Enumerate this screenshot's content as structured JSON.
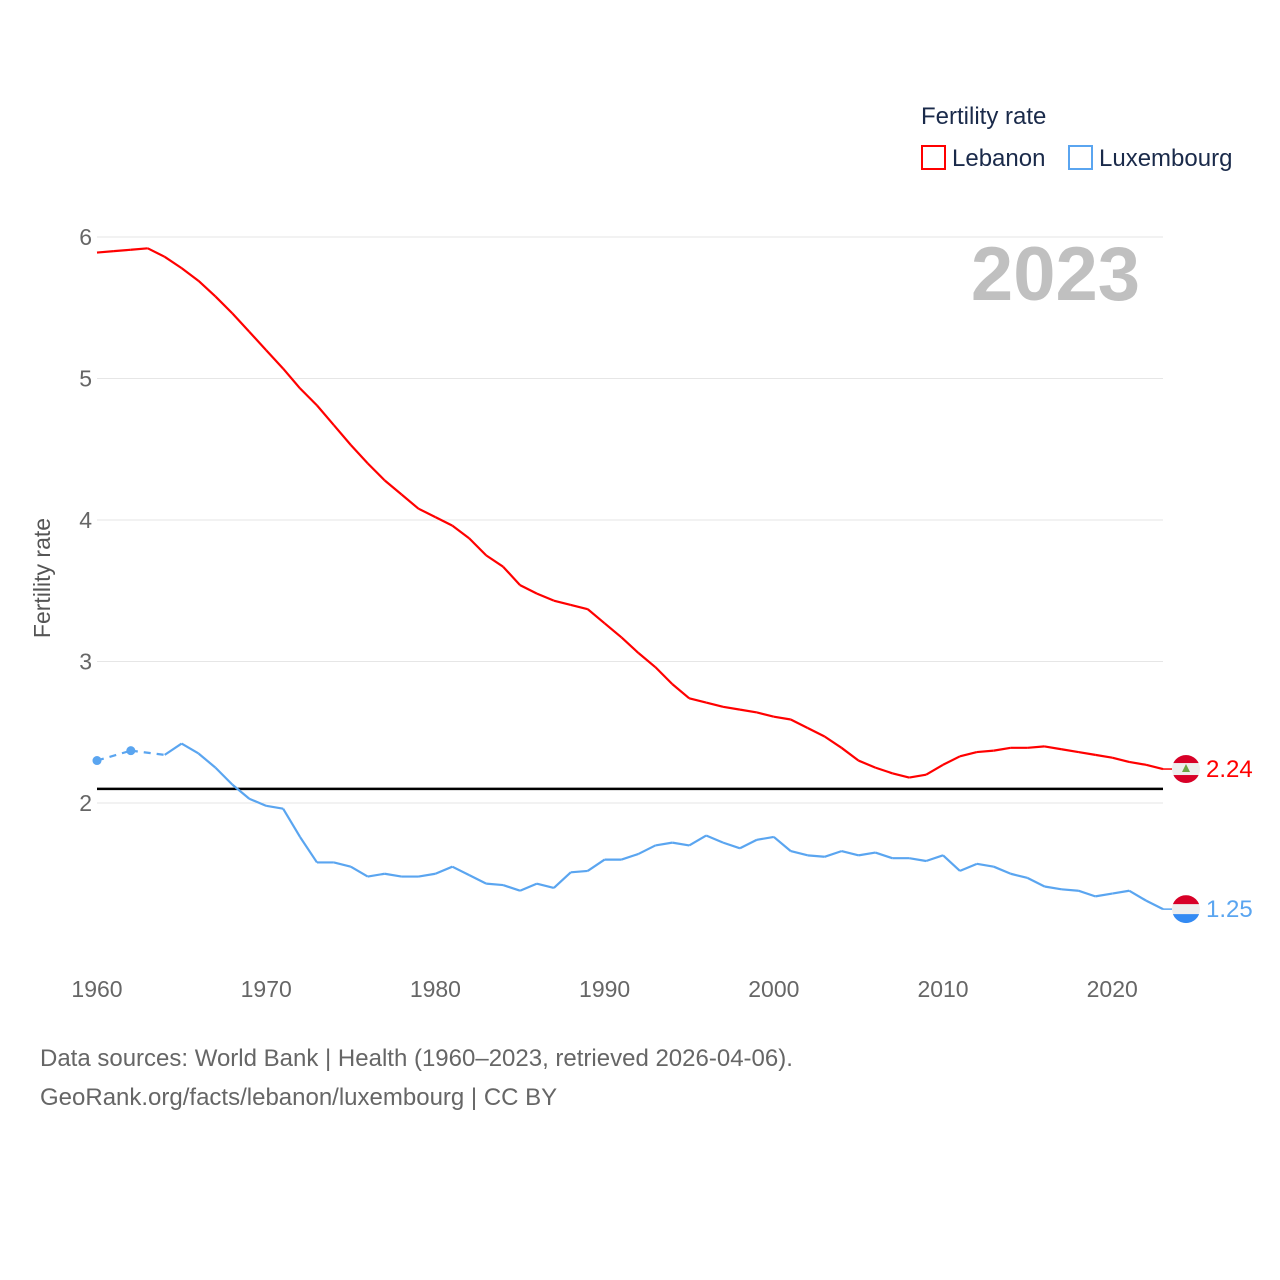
{
  "chart_data": {
    "type": "line",
    "title": "",
    "ylabel": "Fertility rate",
    "xlabel": "",
    "xlim": [
      1960,
      2023
    ],
    "ylim": [
      1.0,
      6.0
    ],
    "x_ticks": [
      "1960",
      "1970",
      "1980",
      "1990",
      "2000",
      "2010",
      "2020"
    ],
    "y_ticks": [
      "2",
      "3",
      "4",
      "5",
      "6"
    ],
    "grid": true,
    "year_label": "2023",
    "legend": {
      "title": "Fertility rate",
      "position": "top-right"
    },
    "reference_line": {
      "value": 2.1,
      "color": "#000000"
    },
    "x": [
      1960,
      1961,
      1962,
      1963,
      1964,
      1965,
      1966,
      1967,
      1968,
      1969,
      1970,
      1971,
      1972,
      1973,
      1974,
      1975,
      1976,
      1977,
      1978,
      1979,
      1980,
      1981,
      1982,
      1983,
      1984,
      1985,
      1986,
      1987,
      1988,
      1989,
      1990,
      1991,
      1992,
      1993,
      1994,
      1995,
      1996,
      1997,
      1998,
      1999,
      2000,
      2001,
      2002,
      2003,
      2004,
      2005,
      2006,
      2007,
      2008,
      2009,
      2010,
      2011,
      2012,
      2013,
      2014,
      2015,
      2016,
      2017,
      2018,
      2019,
      2020,
      2021,
      2022,
      2023
    ],
    "series": [
      {
        "name": "Lebanon",
        "color": "#ff0000",
        "end_label": "2.24",
        "values": [
          5.89,
          5.9,
          5.91,
          5.92,
          5.86,
          5.78,
          5.69,
          5.58,
          5.46,
          5.33,
          5.2,
          5.07,
          4.93,
          4.81,
          4.67,
          4.53,
          4.4,
          4.28,
          4.18,
          4.08,
          4.02,
          3.96,
          3.87,
          3.75,
          3.67,
          3.54,
          3.48,
          3.43,
          3.4,
          3.37,
          3.27,
          3.17,
          3.06,
          2.96,
          2.84,
          2.74,
          2.71,
          2.68,
          2.66,
          2.64,
          2.61,
          2.59,
          2.53,
          2.47,
          2.39,
          2.3,
          2.25,
          2.21,
          2.18,
          2.2,
          2.27,
          2.33,
          2.36,
          2.37,
          2.39,
          2.39,
          2.4,
          2.38,
          2.36,
          2.34,
          2.32,
          2.29,
          2.27,
          2.24
        ]
      },
      {
        "name": "Luxembourg",
        "color": "#5aa5f0",
        "end_label": "1.25",
        "values": [
          2.3,
          null,
          2.37,
          null,
          2.34,
          2.42,
          2.35,
          2.25,
          2.13,
          2.03,
          1.98,
          1.96,
          1.76,
          1.58,
          1.58,
          1.55,
          1.48,
          1.5,
          1.48,
          1.48,
          1.5,
          1.55,
          1.49,
          1.43,
          1.42,
          1.38,
          1.43,
          1.4,
          1.51,
          1.52,
          1.6,
          1.6,
          1.64,
          1.7,
          1.72,
          1.7,
          1.77,
          1.72,
          1.68,
          1.74,
          1.76,
          1.66,
          1.63,
          1.62,
          1.66,
          1.63,
          1.65,
          1.61,
          1.61,
          1.59,
          1.63,
          1.52,
          1.57,
          1.55,
          1.5,
          1.47,
          1.41,
          1.39,
          1.38,
          1.34,
          1.36,
          1.38,
          1.31,
          1.25
        ]
      }
    ]
  },
  "footer": {
    "line1": "Data sources: World Bank | Health (1960–2023, retrieved 2026-04-06).",
    "line2": "GeoRank.org/facts/lebanon/luxembourg | CC BY"
  }
}
